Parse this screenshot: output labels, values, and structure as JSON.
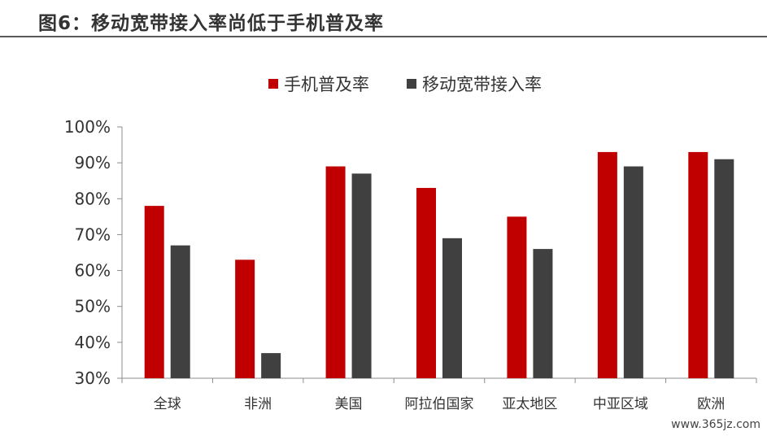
{
  "header": {
    "title": "图6：移动宽带接入率尚低于手机普及率"
  },
  "watermark": "www.365jz.com",
  "chart_data": {
    "type": "bar",
    "categories": [
      "全球",
      "非洲",
      "美国",
      "阿拉伯国家",
      "亚太地区",
      "中亚区域",
      "欧洲"
    ],
    "series": [
      {
        "name": "手机普及率",
        "color": "#C00000",
        "values": [
          78,
          63,
          89,
          83,
          75,
          93,
          93
        ]
      },
      {
        "name": "移动宽带接入率",
        "color": "#404040",
        "values": [
          67,
          37,
          87,
          69,
          66,
          89,
          91
        ]
      }
    ],
    "yticks": [
      "30%",
      "40%",
      "50%",
      "60%",
      "70%",
      "80%",
      "90%",
      "100%"
    ],
    "ylim": [
      30,
      100
    ],
    "xlabel": "",
    "ylabel": "",
    "grid": false,
    "legend_position": "top-center"
  }
}
